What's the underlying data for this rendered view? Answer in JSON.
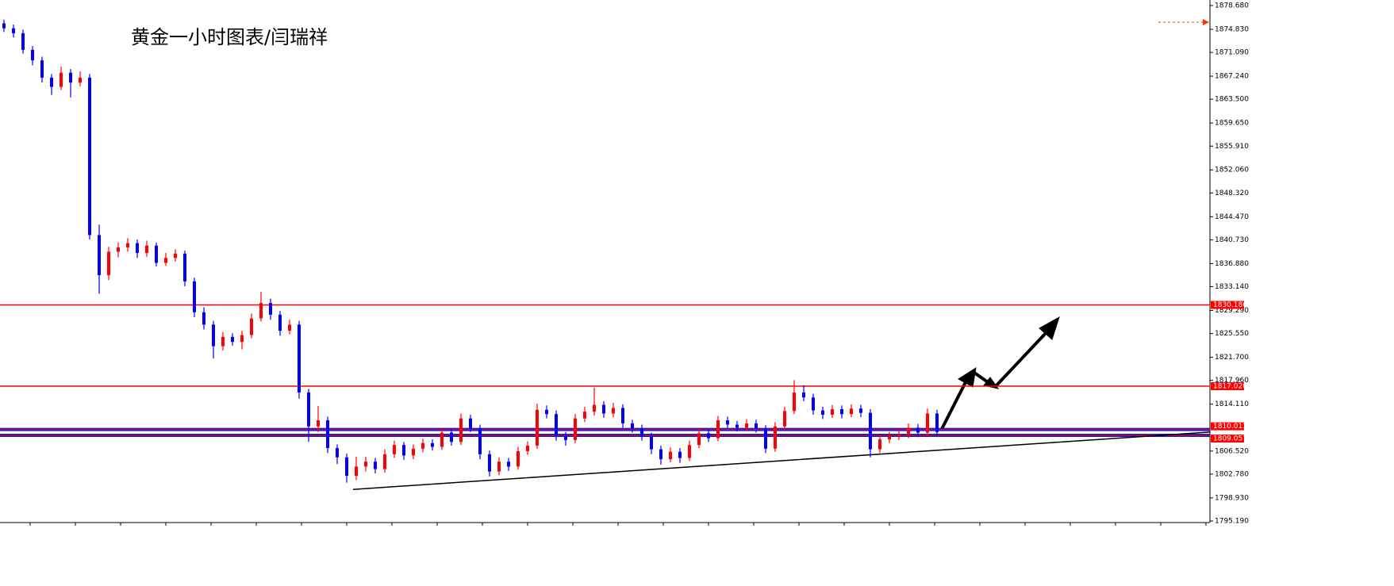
{
  "chart_data": {
    "type": "candlestick",
    "title": "黄金一小时图表/闫瑞祥",
    "ylim": [
      1795.19,
      1878.68
    ],
    "yticks": [
      {
        "value": 1878.68,
        "label": "1878.680"
      },
      {
        "value": 1874.83,
        "label": "1874.830"
      },
      {
        "value": 1871.09,
        "label": "1871.090"
      },
      {
        "value": 1867.24,
        "label": "1867.240"
      },
      {
        "value": 1863.5,
        "label": "1863.500"
      },
      {
        "value": 1859.65,
        "label": "1859.650"
      },
      {
        "value": 1855.91,
        "label": "1855.910"
      },
      {
        "value": 1852.06,
        "label": "1852.060"
      },
      {
        "value": 1848.32,
        "label": "1848.320"
      },
      {
        "value": 1844.47,
        "label": "1844.470"
      },
      {
        "value": 1840.73,
        "label": "1840.730"
      },
      {
        "value": 1836.88,
        "label": "1836.880"
      },
      {
        "value": 1833.14,
        "label": "1833.140"
      },
      {
        "value": 1829.29,
        "label": "1829.290"
      },
      {
        "value": 1825.55,
        "label": "1825.550"
      },
      {
        "value": 1821.7,
        "label": "1821.700"
      },
      {
        "value": 1817.96,
        "label": "1817.960"
      },
      {
        "value": 1814.11,
        "label": "1814.110"
      },
      {
        "value": 1806.52,
        "label": "1806.520"
      },
      {
        "value": 1802.78,
        "label": "1802.780"
      },
      {
        "value": 1798.93,
        "label": "1798.930"
      },
      {
        "value": 1795.19,
        "label": "1795.190"
      }
    ],
    "up_color": "#ff0000",
    "down_color": "#0000ff",
    "open": [
      1875.8,
      1875.0,
      1874.2,
      1871.5,
      1869.8,
      1867.0,
      1865.5,
      1867.8,
      1866.2,
      1867.0,
      1841.5,
      1835.0,
      1838.8,
      1839.5,
      1840.2,
      1838.6,
      1839.8,
      1837.0,
      1837.8,
      1838.5,
      1834.0,
      1829.0,
      1827.0,
      1823.5,
      1825.0,
      1824.2,
      1825.3,
      1828.0,
      1830.5,
      1828.6,
      1826.0,
      1827.0,
      1816.0,
      1810.5,
      1811.5,
      1807.0,
      1805.5,
      1802.5,
      1804.0,
      1804.8,
      1803.6,
      1806.0,
      1807.5,
      1805.8,
      1806.9,
      1807.8,
      1807.2,
      1809.5,
      1808.0,
      1811.8,
      1810.2,
      1806.0,
      1803.2,
      1804.8,
      1804.0,
      1806.5,
      1807.4,
      1813.2,
      1812.5,
      1809.0,
      1808.3,
      1811.8,
      1812.9,
      1814.0,
      1812.6,
      1813.5,
      1811.0,
      1810.2,
      1808.9,
      1806.8,
      1805.2,
      1806.4,
      1805.4,
      1807.5,
      1809.4,
      1808.6,
      1811.5,
      1810.8,
      1810.3,
      1811.0,
      1810.1,
      1806.9,
      1810.5,
      1813.0,
      1816.0,
      1815.2,
      1813.1,
      1812.4,
      1813.3,
      1812.5,
      1813.4,
      1812.7,
      1806.8,
      1808.4,
      1808.9,
      1809.2,
      1810.3,
      1809.5,
      1812.6
    ],
    "high": [
      1876.4,
      1875.6,
      1874.8,
      1872.1,
      1870.4,
      1867.6,
      1868.8,
      1868.4,
      1868.0,
      1867.6,
      1843.2,
      1839.6,
      1840.3,
      1841.0,
      1840.8,
      1840.6,
      1840.3,
      1838.6,
      1839.2,
      1839.0,
      1834.6,
      1829.8,
      1827.6,
      1825.8,
      1825.6,
      1826.0,
      1828.8,
      1832.3,
      1831.2,
      1829.2,
      1827.8,
      1827.6,
      1816.6,
      1813.8,
      1812.1,
      1807.6,
      1806.1,
      1805.6,
      1805.6,
      1805.4,
      1806.8,
      1808.2,
      1808.0,
      1807.6,
      1808.5,
      1808.4,
      1810.2,
      1810.1,
      1812.6,
      1812.4,
      1810.8,
      1806.6,
      1805.5,
      1805.4,
      1807.2,
      1808.1,
      1814.2,
      1813.9,
      1813.1,
      1809.6,
      1812.5,
      1813.7,
      1816.8,
      1814.6,
      1814.3,
      1814.1,
      1811.6,
      1810.8,
      1809.5,
      1807.4,
      1807.1,
      1807.0,
      1808.2,
      1810.1,
      1810.0,
      1812.2,
      1812.1,
      1811.4,
      1811.7,
      1811.6,
      1810.7,
      1811.2,
      1813.7,
      1818.0,
      1817.2,
      1815.8,
      1813.7,
      1814.0,
      1813.9,
      1814.1,
      1814.0,
      1813.3,
      1809.1,
      1809.6,
      1810.0,
      1811.0,
      1810.9,
      1813.4,
      1813.2
    ],
    "low": [
      1874.4,
      1873.5,
      1870.9,
      1869.0,
      1866.2,
      1864.2,
      1865.0,
      1863.8,
      1865.6,
      1840.8,
      1832.0,
      1834.2,
      1837.9,
      1838.8,
      1837.8,
      1838.0,
      1836.4,
      1836.5,
      1837.2,
      1833.2,
      1828.2,
      1826.2,
      1821.5,
      1822.8,
      1823.6,
      1823.0,
      1824.8,
      1827.5,
      1827.8,
      1825.2,
      1825.4,
      1815.0,
      1808.0,
      1809.6,
      1806.2,
      1804.4,
      1801.4,
      1801.8,
      1803.2,
      1802.9,
      1803.0,
      1805.4,
      1805.1,
      1805.2,
      1806.3,
      1806.6,
      1806.7,
      1807.4,
      1807.5,
      1809.6,
      1805.2,
      1802.4,
      1802.6,
      1803.3,
      1803.5,
      1805.9,
      1806.9,
      1811.8,
      1808.2,
      1807.4,
      1807.8,
      1811.2,
      1812.3,
      1811.9,
      1812.0,
      1810.3,
      1809.5,
      1808.2,
      1806.0,
      1804.3,
      1804.7,
      1804.6,
      1804.9,
      1807.0,
      1808.0,
      1808.1,
      1810.2,
      1809.7,
      1809.8,
      1809.5,
      1806.2,
      1806.4,
      1810.0,
      1812.5,
      1814.6,
      1812.4,
      1811.7,
      1811.9,
      1811.8,
      1812.0,
      1812.0,
      1805.5,
      1806.2,
      1807.8,
      1808.3,
      1808.6,
      1808.8,
      1809.0,
      1809.0
    ],
    "close": [
      1875.0,
      1874.2,
      1871.5,
      1869.8,
      1867.0,
      1865.5,
      1867.8,
      1866.2,
      1867.0,
      1841.5,
      1835.0,
      1838.8,
      1839.5,
      1840.2,
      1838.6,
      1839.8,
      1837.0,
      1837.8,
      1838.5,
      1834.0,
      1829.0,
      1827.0,
      1823.5,
      1825.0,
      1824.2,
      1825.3,
      1828.0,
      1830.5,
      1828.6,
      1826.0,
      1827.0,
      1816.0,
      1810.5,
      1811.5,
      1807.0,
      1805.5,
      1802.5,
      1804.0,
      1804.8,
      1803.6,
      1806.0,
      1807.5,
      1805.8,
      1806.9,
      1807.8,
      1807.2,
      1809.5,
      1808.0,
      1811.8,
      1810.2,
      1806.0,
      1803.2,
      1804.8,
      1804.0,
      1806.5,
      1807.4,
      1813.2,
      1812.5,
      1809.0,
      1808.3,
      1811.8,
      1812.9,
      1814.0,
      1812.6,
      1813.5,
      1811.0,
      1810.2,
      1808.9,
      1806.8,
      1805.2,
      1806.4,
      1805.4,
      1807.5,
      1809.4,
      1808.6,
      1811.5,
      1810.8,
      1810.3,
      1811.0,
      1810.1,
      1806.9,
      1810.5,
      1813.0,
      1816.0,
      1815.2,
      1813.1,
      1812.4,
      1813.3,
      1812.5,
      1813.4,
      1812.7,
      1806.8,
      1808.4,
      1808.9,
      1809.2,
      1810.3,
      1809.5,
      1812.6,
      1809.6
    ],
    "hlines": [
      {
        "value": 1830.186,
        "label": "1830.186",
        "color": "#ff0000"
      },
      {
        "value": 1817.02,
        "label": "1817.020",
        "color": "#ff0000"
      },
      {
        "value": 1810.011,
        "label": "1810.011",
        "color": "#1a1acc"
      },
      {
        "value": 1809.057,
        "label": "1809.057",
        "color": "#1a1acc"
      }
    ],
    "trendline": {
      "values": [
        1800.3,
        1809.6
      ],
      "color": "#000000"
    }
  }
}
